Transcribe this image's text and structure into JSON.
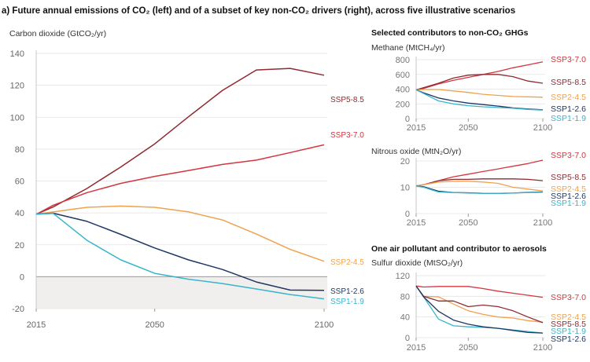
{
  "title": "a) Future annual emissions of CO₂ (left) and of a subset of key non-CO₂ drivers (right), across five illustrative scenarios",
  "right_top_heading": "Selected contributors to non-CO₂ GHGs",
  "right_bottom_heading": "One air pollutant and contributor to aerosols",
  "scenario_colors": {
    "SSP5-8.5": "#8e2a31",
    "SSP3-7.0": "#d3363e",
    "SSP2-4.5": "#f0a24e",
    "SSP1-2.6": "#1f3763",
    "SSP1-1.9": "#38b4cd"
  },
  "chart_data": [
    {
      "type": "line",
      "title": "Carbon dioxide (GtCO₂/yr)",
      "ylim": [
        -20,
        140
      ],
      "yticks": [
        "140",
        "120",
        "100",
        "80",
        "60",
        "40",
        "20",
        "0",
        "-20"
      ],
      "yticks_values": [
        140,
        120,
        100,
        80,
        60,
        40,
        20,
        0,
        -20
      ],
      "xticks": [
        "2015",
        "2050",
        "2100"
      ],
      "xticks_values": [
        2015,
        2050,
        2100
      ],
      "grid": true,
      "negative_region_shaded": true,
      "x": [
        2015,
        2020,
        2030,
        2040,
        2050,
        2060,
        2070,
        2080,
        2090,
        2100
      ],
      "series": [
        {
          "name": "SSP5-8.5",
          "values": [
            39.2,
            43.7,
            55.3,
            68.8,
            83.3,
            100.3,
            116.8,
            129.6,
            130.6,
            126.3
          ]
        },
        {
          "name": "SSP3-7.0",
          "values": [
            39.1,
            44.8,
            52.7,
            58.5,
            62.9,
            66.6,
            70.4,
            73.1,
            77.8,
            82.7
          ]
        },
        {
          "name": "SSP2-4.5",
          "values": [
            39.2,
            40.6,
            43.5,
            44.3,
            43.5,
            40.6,
            35.6,
            26.7,
            17.1,
            9.7
          ]
        },
        {
          "name": "SSP1-2.6",
          "values": [
            39.2,
            39.8,
            34.7,
            26.5,
            18.0,
            10.5,
            4.5,
            -3.3,
            -8.4,
            -8.6
          ]
        },
        {
          "name": "SSP1-1.9",
          "values": [
            39.2,
            39.7,
            22.8,
            10.5,
            2.1,
            -1.6,
            -4.3,
            -7.7,
            -11.2,
            -13.9
          ]
        }
      ]
    },
    {
      "type": "line",
      "title": "Methane (MtCH₄/yr)",
      "ylim": [
        0,
        800
      ],
      "yticks": [
        "800",
        "600",
        "400",
        "200",
        "0"
      ],
      "yticks_values": [
        800,
        600,
        400,
        200,
        0
      ],
      "xticks": [
        "2015",
        "2050",
        "2100"
      ],
      "xticks_values": [
        2015,
        2050,
        2100
      ],
      "grid": true,
      "x": [
        2015,
        2020,
        2030,
        2040,
        2050,
        2060,
        2070,
        2080,
        2090,
        2100
      ],
      "series": [
        {
          "name": "SSP3-7.0",
          "values": [
            390,
            410,
            470,
            520,
            560,
            600,
            640,
            690,
            730,
            770
          ]
        },
        {
          "name": "SSP5-8.5",
          "values": [
            390,
            420,
            480,
            550,
            590,
            600,
            600,
            570,
            510,
            480
          ]
        },
        {
          "name": "SSP2-4.5",
          "values": [
            390,
            395,
            395,
            375,
            355,
            330,
            315,
            300,
            295,
            290
          ]
        },
        {
          "name": "SSP1-2.6",
          "values": [
            390,
            350,
            280,
            240,
            210,
            190,
            170,
            145,
            130,
            120
          ]
        },
        {
          "name": "SSP1-1.9",
          "values": [
            390,
            340,
            240,
            200,
            175,
            160,
            150,
            140,
            125,
            115
          ]
        }
      ]
    },
    {
      "type": "line",
      "title": "Nitrous oxide (MtN₂O/yr)",
      "ylim": [
        0,
        20
      ],
      "yticks": [
        "20",
        "10",
        "0"
      ],
      "yticks_values": [
        20,
        10,
        0
      ],
      "xticks": [
        "2015",
        "2050",
        "2100"
      ],
      "xticks_values": [
        2015,
        2050,
        2100
      ],
      "grid": true,
      "x": [
        2015,
        2020,
        2030,
        2040,
        2050,
        2060,
        2070,
        2080,
        2090,
        2100
      ],
      "series": [
        {
          "name": "SSP3-7.0",
          "values": [
            10.5,
            11.0,
            12.5,
            14.0,
            15.0,
            16.0,
            17.0,
            18.0,
            19.0,
            20.3
          ]
        },
        {
          "name": "SSP5-8.5",
          "values": [
            10.5,
            11.0,
            12.5,
            13.0,
            13.0,
            13.2,
            13.2,
            13.2,
            13.0,
            12.5
          ]
        },
        {
          "name": "SSP2-4.5",
          "values": [
            10.5,
            11.0,
            12.0,
            12.3,
            12.3,
            12.0,
            11.5,
            10.0,
            9.3,
            8.6
          ]
        },
        {
          "name": "SSP1-2.6",
          "values": [
            10.5,
            10.2,
            8.5,
            8.0,
            7.9,
            7.7,
            7.7,
            7.8,
            8.1,
            8.2
          ]
        },
        {
          "name": "SSP1-1.9",
          "values": [
            10.5,
            10.0,
            8.2,
            8.0,
            7.8,
            7.7,
            7.7,
            7.8,
            8.0,
            8.1
          ]
        }
      ]
    },
    {
      "type": "line",
      "title": "Sulfur dioxide (MtSO₂/yr)",
      "ylim": [
        0,
        120
      ],
      "yticks": [
        "120",
        "80",
        "40",
        "0"
      ],
      "yticks_values": [
        120,
        80,
        40,
        0
      ],
      "xticks": [
        "2015",
        "2050",
        "2100"
      ],
      "xticks_values": [
        2015,
        2050,
        2100
      ],
      "grid": true,
      "x": [
        2015,
        2020,
        2030,
        2040,
        2050,
        2060,
        2070,
        2080,
        2090,
        2100
      ],
      "series": [
        {
          "name": "SSP3-7.0",
          "values": [
            100,
            98,
            99,
            99,
            99,
            95,
            90,
            86,
            82,
            78
          ]
        },
        {
          "name": "SSP2-4.5",
          "values": [
            100,
            80,
            79,
            65,
            52,
            45,
            40,
            38,
            33,
            30
          ]
        },
        {
          "name": "SSP5-8.5",
          "values": [
            100,
            80,
            71,
            71,
            60,
            63,
            60,
            52,
            40,
            29
          ]
        },
        {
          "name": "SSP1-1.9",
          "values": [
            100,
            79,
            36,
            23,
            21,
            20,
            18,
            15,
            12,
            9
          ]
        },
        {
          "name": "SSP1-2.6",
          "values": [
            100,
            79,
            51,
            34,
            26,
            21,
            18,
            14,
            10,
            9
          ]
        }
      ]
    }
  ]
}
